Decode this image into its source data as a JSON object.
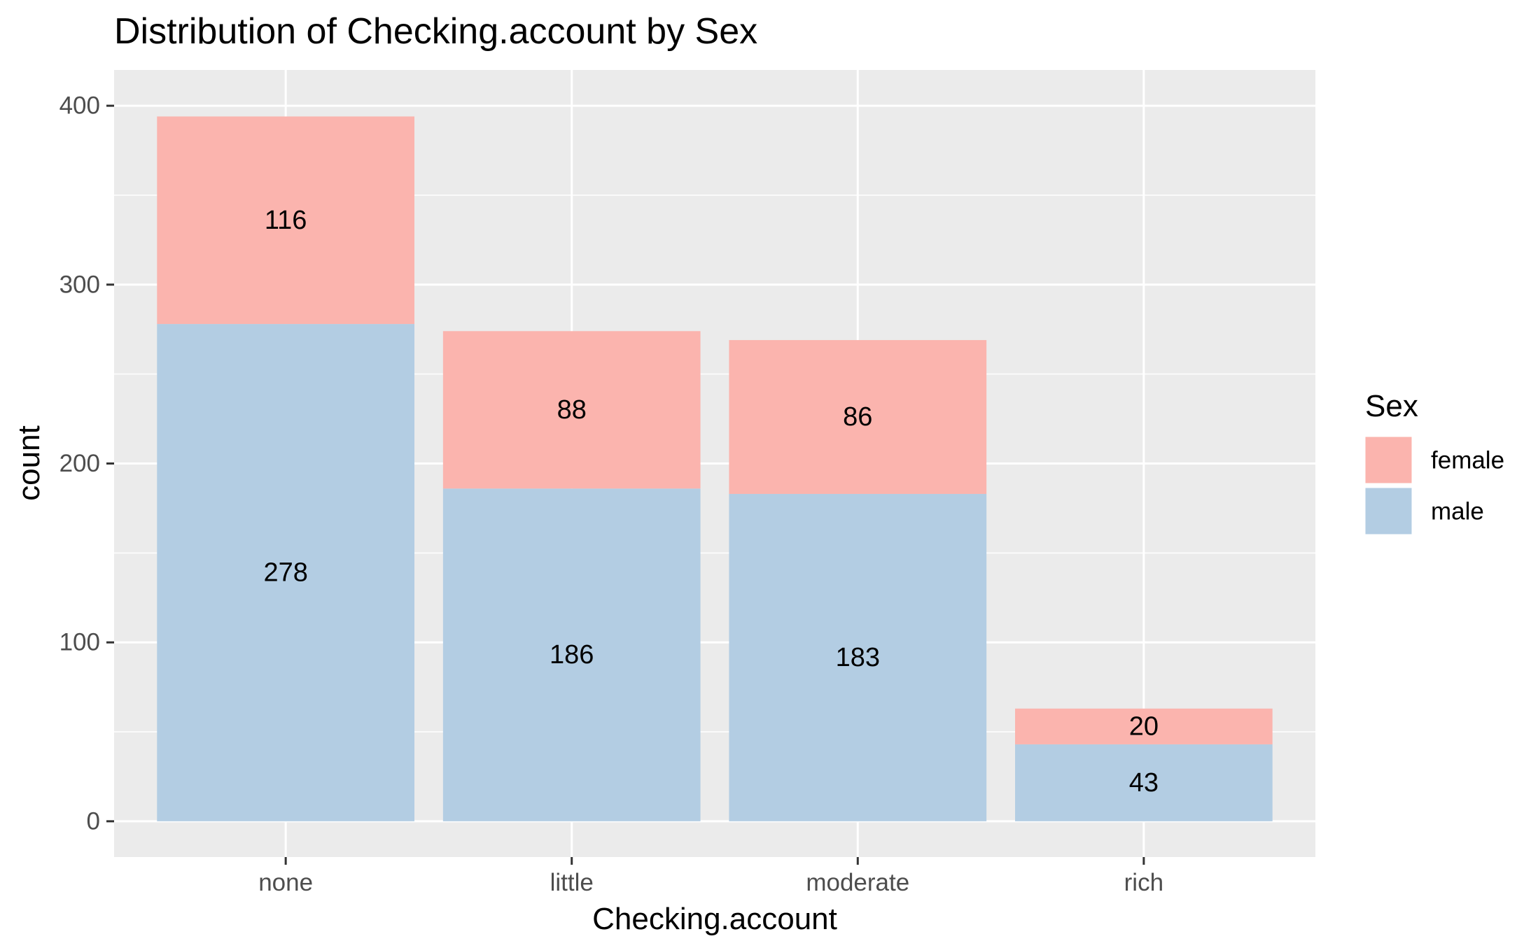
{
  "chart_data": {
    "type": "bar",
    "stacked": true,
    "title": "Distribution of Checking.account by Sex",
    "xlabel": "Checking.account",
    "ylabel": "count",
    "categories": [
      "none",
      "little",
      "moderate",
      "rich"
    ],
    "series": [
      {
        "name": "male",
        "values": [
          278,
          186,
          183,
          43
        ],
        "color": "#B3CDE3"
      },
      {
        "name": "female",
        "values": [
          116,
          88,
          86,
          20
        ],
        "color": "#FBB4AE"
      }
    ],
    "ylim": [
      -20,
      420
    ],
    "yticks": [
      0,
      100,
      200,
      300,
      400
    ],
    "grid": true,
    "legend": {
      "title": "Sex",
      "position": "right",
      "entries": [
        {
          "label": "female",
          "color": "#FBB4AE"
        },
        {
          "label": "male",
          "color": "#B3CDE3"
        }
      ]
    },
    "panel_background": "#EBEBEB",
    "grid_color": "#FFFFFF"
  }
}
